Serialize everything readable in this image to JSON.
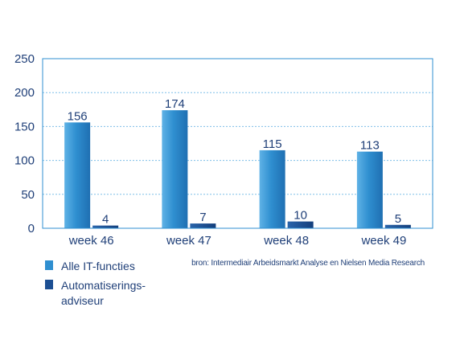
{
  "chart_data": {
    "type": "bar",
    "categories": [
      "week 46",
      "week 47",
      "week 48",
      "week 49"
    ],
    "series": [
      {
        "name": "Alle IT-functies",
        "values": [
          156,
          174,
          115,
          113
        ],
        "color": "#2f8fd0"
      },
      {
        "name": "Automatiserings-adviseur",
        "values": [
          4,
          7,
          10,
          5
        ],
        "color": "#1c4f93"
      }
    ],
    "ylim": [
      0,
      250
    ],
    "yticks": [
      0,
      50,
      100,
      150,
      200,
      250
    ],
    "grid": "horizontal-dashed",
    "legend_position": "bottom-left",
    "axis_color": "#2f8fd0"
  },
  "legend": {
    "items": [
      {
        "label": "Alle IT-functies",
        "color": "#2f8fd0"
      },
      {
        "label": "Automatiserings-\nadviseur",
        "color": "#1c4f93"
      }
    ]
  },
  "source_note": "bron: Intermediair Arbeidsmarkt Analyse en Nielsen Media Research"
}
